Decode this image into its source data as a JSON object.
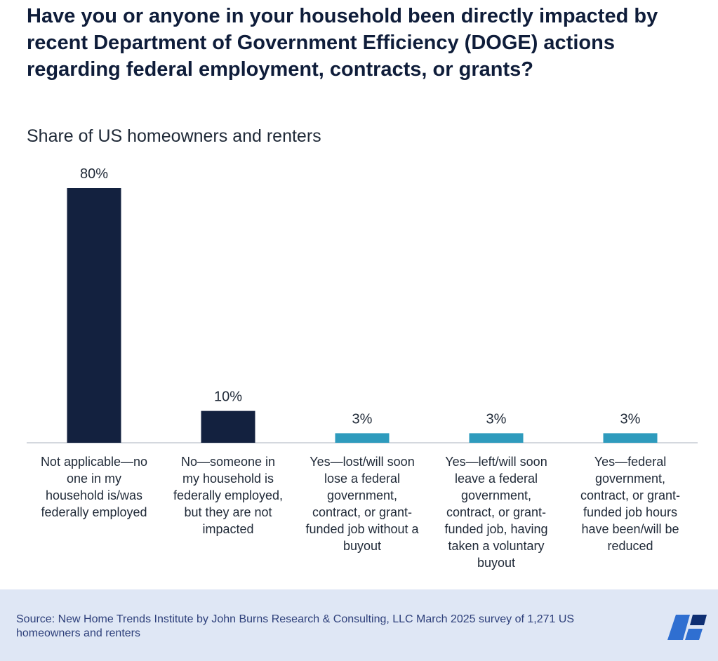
{
  "header": {
    "title": "Have you or anyone in your household been directly impacted by recent Department of Government Efficiency (DOGE) actions regarding federal employment, contracts, or grants?",
    "subtitle": "Share of US homeowners and renters"
  },
  "chart_data": {
    "type": "bar",
    "title": "Have you or anyone in your household been directly impacted by recent Department of Government Efficiency (DOGE) actions regarding federal employment, contracts, or grants?",
    "subtitle": "Share of US homeowners and renters",
    "xlabel": "",
    "ylabel": "",
    "ylim": [
      0,
      80
    ],
    "grid": false,
    "categories": [
      "Not applicable—no one in my household is/was federally employed",
      "No—someone in my household is federally employed, but they are not impacted",
      "Yes—lost/will soon lose a federal government, contract, or grant-funded job without a buyout",
      "Yes—left/will soon leave a federal government, contract, or grant-funded job, having taken a voluntary buyout",
      "Yes—federal government, contract, or grant-funded job hours have been/will be reduced"
    ],
    "category_lines": [
      [
        "Not applicable—no",
        "one in my",
        "household is/was",
        "federally employed"
      ],
      [
        "No—someone in",
        "my household is",
        "federally employed,",
        "but they are not",
        "impacted"
      ],
      [
        "Yes—lost/will soon",
        "lose a federal",
        "government,",
        "contract, or grant-",
        "funded job without a",
        "buyout"
      ],
      [
        "Yes—left/will soon",
        "leave a federal",
        "government,",
        "contract, or grant-",
        "funded job, having",
        "taken a voluntary",
        "buyout"
      ],
      [
        "Yes—federal",
        "government,",
        "contract, or grant-",
        "funded job hours",
        "have been/will be",
        "reduced"
      ]
    ],
    "values": [
      80,
      10,
      3,
      3,
      3
    ],
    "value_labels": [
      "80%",
      "10%",
      "3%",
      "3%",
      "3%"
    ],
    "colors": [
      "#13213f",
      "#13213f",
      "#2e9bbd",
      "#2e9bbd",
      "#2e9bbd"
    ]
  },
  "footer": {
    "source": "Source: New Home Trends Institute by John Burns Research & Consulting, LLC March 2025 survey of 1,271 US homeowners and renters",
    "logo_colors": [
      "#2f6fd1",
      "#0f2f73"
    ]
  }
}
